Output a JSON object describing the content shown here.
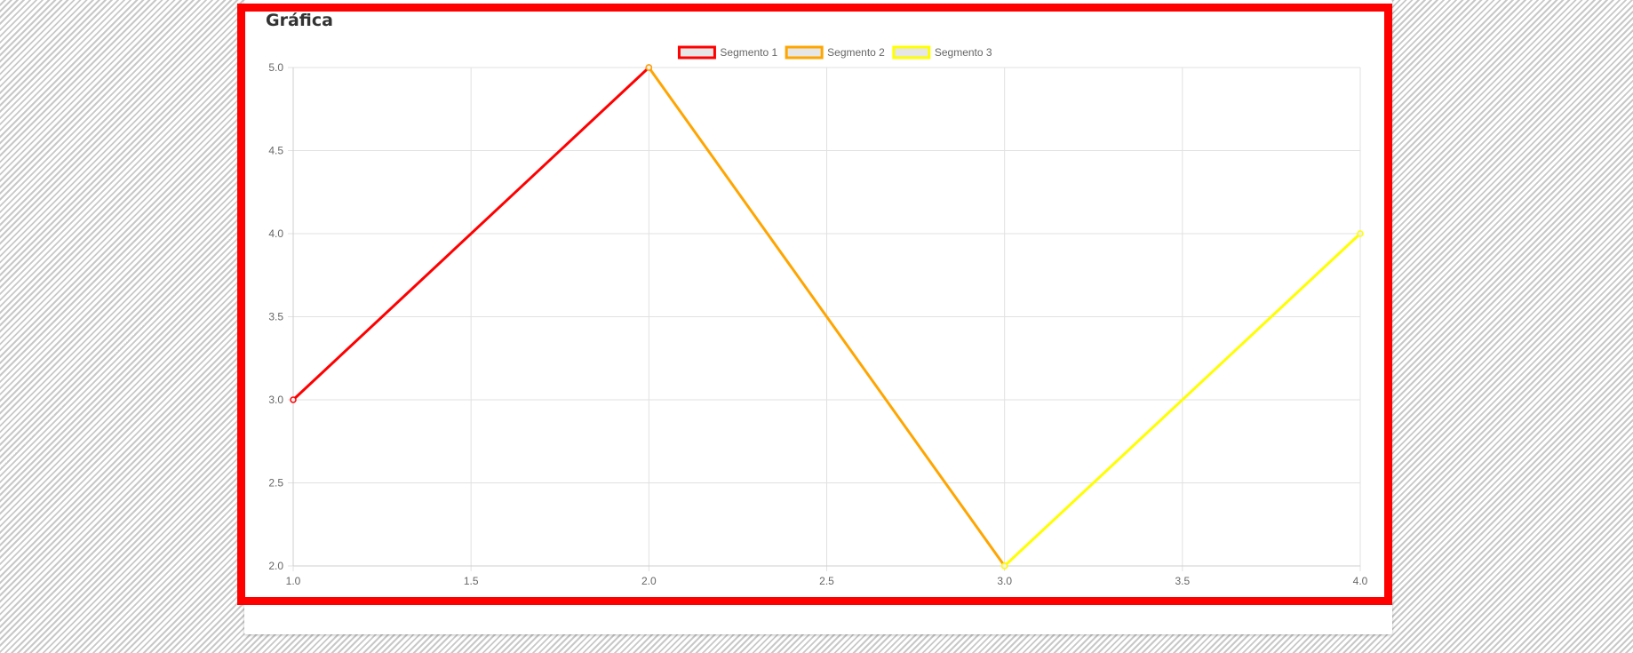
{
  "panel": {
    "title": "Gráfica"
  },
  "chart_data": {
    "type": "line",
    "title": "",
    "xlabel": "",
    "ylabel": "",
    "xlim": [
      1.0,
      4.0
    ],
    "ylim": [
      2.0,
      5.0
    ],
    "x_ticks": [
      "1.0",
      "1.5",
      "2.0",
      "2.5",
      "3.0",
      "3.5",
      "4.0"
    ],
    "y_ticks": [
      "2.0",
      "2.5",
      "3.0",
      "3.5",
      "4.0",
      "4.5",
      "5.0"
    ],
    "grid": true,
    "legend_position": "top-center",
    "series": [
      {
        "name": "Segmento 1",
        "color": "#ff0000",
        "points": [
          [
            1,
            3
          ],
          [
            2,
            5
          ]
        ]
      },
      {
        "name": "Segmento 2",
        "color": "#ffa500",
        "points": [
          [
            2,
            5
          ],
          [
            3,
            2
          ]
        ]
      },
      {
        "name": "Segmento 3",
        "color": "#ffff00",
        "points": [
          [
            3,
            2
          ],
          [
            4,
            4
          ]
        ]
      }
    ]
  },
  "colors": {
    "highlight_border": "#ff0000",
    "grid": "#e1e1e1",
    "legend_fill": "#e6e6e6"
  }
}
